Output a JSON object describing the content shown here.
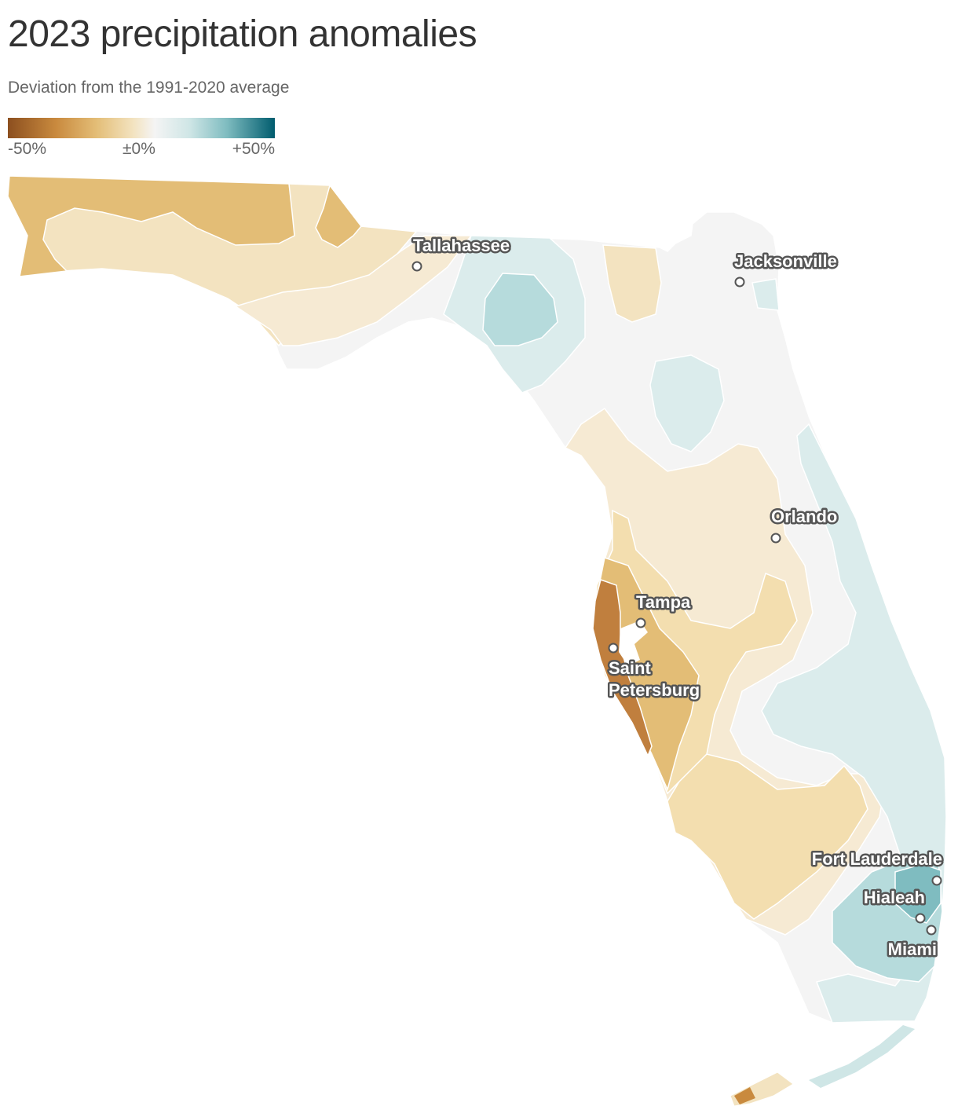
{
  "title": "2023 precipitation anomalies",
  "subtitle": "Deviation from the 1991-2020 average",
  "legend": {
    "min_label": "-50%",
    "mid_label": "±0%",
    "max_label": "+50%",
    "colors": [
      "#8c4f1f",
      "#c98a3e",
      "#e3bd76",
      "#f3e3c0",
      "#f4f4f4",
      "#cfe6e6",
      "#7fbcc0",
      "#005c6e"
    ]
  },
  "map": {
    "region": "Florida",
    "cities": [
      {
        "name": "Tallahassee",
        "lines": [
          "Tallahassee"
        ]
      },
      {
        "name": "Jacksonville",
        "lines": [
          "Jacksonville"
        ]
      },
      {
        "name": "Orlando",
        "lines": [
          "Orlando"
        ]
      },
      {
        "name": "Tampa",
        "lines": [
          "Tampa"
        ]
      },
      {
        "name": "Saint Petersburg",
        "lines": [
          "Saint",
          "Petersburg"
        ]
      },
      {
        "name": "Fort Lauderdale",
        "lines": [
          "Fort Lauderdale"
        ]
      },
      {
        "name": "Hialeah",
        "lines": [
          "Hialeah"
        ]
      },
      {
        "name": "Miami",
        "lines": [
          "Miami"
        ]
      }
    ]
  }
}
